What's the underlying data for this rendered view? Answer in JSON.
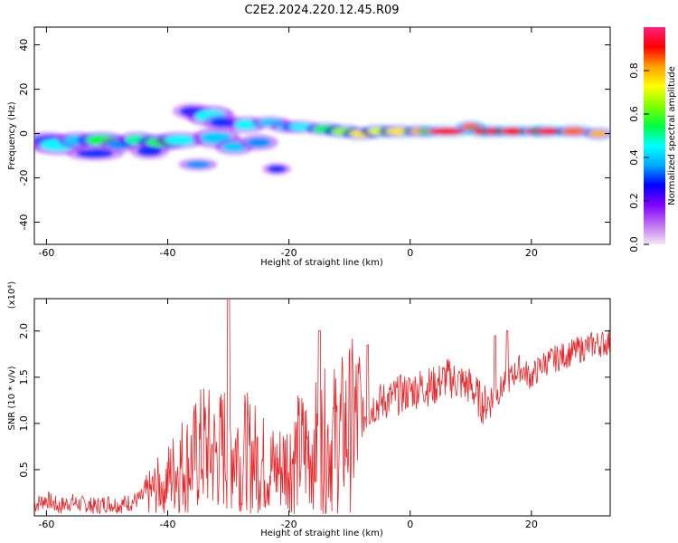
{
  "title": "C2E2.2024.220.12.45.R09",
  "chart_data": [
    {
      "type": "heatmap",
      "title": "C2E2.2024.220.12.45.R09",
      "xlabel": "Height of straight line (km)",
      "ylabel": "Frequency (Hz)",
      "xlim": [
        -62,
        33
      ],
      "ylim": [
        -50,
        48
      ],
      "xticks": [
        -60,
        -40,
        -20,
        0,
        20
      ],
      "yticks": [
        -40,
        -20,
        0,
        20,
        40
      ],
      "colorbar": {
        "label": "Normalized spectral amplitude",
        "range": [
          0,
          1
        ],
        "ticks": [
          0.0,
          0.2,
          0.4,
          0.6,
          0.8
        ],
        "colormap": [
          "#f5e6f7",
          "#c070f0",
          "#8000ff",
          "#0000ff",
          "#00aaff",
          "#00ffff",
          "#00ff40",
          "#80ff00",
          "#ffff00",
          "#ffa000",
          "#ff0000",
          "#ff2080"
        ]
      },
      "blobs": [
        {
          "x": -60,
          "y": -3,
          "w": 2.5,
          "h": 2,
          "v": 0.35
        },
        {
          "x": -58,
          "y": -5,
          "w": 3,
          "h": 2.5,
          "v": 0.45
        },
        {
          "x": -55,
          "y": -3,
          "w": 2,
          "h": 2,
          "v": 0.4
        },
        {
          "x": -52,
          "y": -9,
          "w": 3,
          "h": 1.8,
          "v": 0.3
        },
        {
          "x": -51,
          "y": -3,
          "w": 2.5,
          "h": 2,
          "v": 0.55
        },
        {
          "x": -48,
          "y": -5,
          "w": 2,
          "h": 2,
          "v": 0.35
        },
        {
          "x": -45,
          "y": -3,
          "w": 2,
          "h": 2,
          "v": 0.5
        },
        {
          "x": -43,
          "y": -8,
          "w": 2,
          "h": 2,
          "v": 0.3
        },
        {
          "x": -41,
          "y": -4,
          "w": 2.5,
          "h": 2,
          "v": 0.55
        },
        {
          "x": -38,
          "y": -3,
          "w": 2.5,
          "h": 2,
          "v": 0.45
        },
        {
          "x": -36,
          "y": 10,
          "w": 2,
          "h": 2,
          "v": 0.3
        },
        {
          "x": -35,
          "y": -14,
          "w": 2,
          "h": 1.5,
          "v": 0.35
        },
        {
          "x": -33,
          "y": 8,
          "w": 2.5,
          "h": 2.5,
          "v": 0.45
        },
        {
          "x": -32,
          "y": -2,
          "w": 2.5,
          "h": 2.5,
          "v": 0.4
        },
        {
          "x": -31,
          "y": 5,
          "w": 2,
          "h": 2,
          "v": 0.3
        },
        {
          "x": -29,
          "y": -6,
          "w": 2,
          "h": 2,
          "v": 0.4
        },
        {
          "x": -27,
          "y": 4,
          "w": 2,
          "h": 2,
          "v": 0.45
        },
        {
          "x": -25,
          "y": -4,
          "w": 2,
          "h": 2,
          "v": 0.35
        },
        {
          "x": -23,
          "y": 5,
          "w": 2,
          "h": 1.5,
          "v": 0.4
        },
        {
          "x": -22,
          "y": -16,
          "w": 1.5,
          "h": 1.5,
          "v": 0.3
        },
        {
          "x": -20,
          "y": 3,
          "w": 2,
          "h": 1.5,
          "v": 0.4
        },
        {
          "x": -18,
          "y": 3,
          "w": 2,
          "h": 1.5,
          "v": 0.45
        },
        {
          "x": -14,
          "y": 2,
          "w": 2,
          "h": 1.5,
          "v": 0.55
        },
        {
          "x": -11,
          "y": 1,
          "w": 2,
          "h": 1.5,
          "v": 0.65
        },
        {
          "x": -8,
          "y": 0,
          "w": 2,
          "h": 1.5,
          "v": 0.75
        },
        {
          "x": -5,
          "y": 1,
          "w": 2,
          "h": 1.5,
          "v": 0.7
        },
        {
          "x": -2,
          "y": 1,
          "w": 2,
          "h": 1.5,
          "v": 0.75
        },
        {
          "x": 2,
          "y": 1,
          "w": 2,
          "h": 1.5,
          "v": 0.8
        },
        {
          "x": 6,
          "y": 1,
          "w": 3,
          "h": 1.5,
          "v": 0.95
        },
        {
          "x": 10,
          "y": 3,
          "w": 1.5,
          "h": 1.5,
          "v": 0.85
        },
        {
          "x": 12,
          "y": 1,
          "w": 1.5,
          "h": 1.5,
          "v": 0.9
        },
        {
          "x": 14,
          "y": 1,
          "w": 1.5,
          "h": 1.5,
          "v": 0.9
        },
        {
          "x": 17,
          "y": 1,
          "w": 2,
          "h": 1.5,
          "v": 0.9
        },
        {
          "x": 21,
          "y": 1,
          "w": 2,
          "h": 1.5,
          "v": 0.9
        },
        {
          "x": 23,
          "y": 1,
          "w": 2,
          "h": 1.5,
          "v": 0.95
        },
        {
          "x": 27,
          "y": 1,
          "w": 2,
          "h": 1.5,
          "v": 0.85
        },
        {
          "x": 31,
          "y": 0,
          "w": 1.5,
          "h": 1.5,
          "v": 0.8
        }
      ]
    },
    {
      "type": "line",
      "xlabel": "Height of straight line (km)",
      "ylabel": "SNR (10 * v/v)",
      "y_multiplier_label": "(x10⁴)",
      "xlim": [
        -62,
        33
      ],
      "ylim": [
        0,
        2.35
      ],
      "xticks": [
        -60,
        -40,
        -20,
        0,
        20
      ],
      "yticks": [
        0.5,
        1.0,
        1.5,
        2.0
      ],
      "ytick_labels": [
        "0.5",
        "1.0",
        "1.5",
        "2.0"
      ],
      "series": [
        {
          "color": "#e8262a",
          "x": [
            -62,
            -60,
            -58,
            -56,
            -54,
            -52,
            -50,
            -48,
            -46,
            -44,
            -42,
            -40,
            -38,
            -36,
            -34,
            -32,
            -30,
            -28,
            -26,
            -24,
            -22,
            -20,
            -18,
            -16,
            -14,
            -12,
            -10,
            -8,
            -6,
            -4,
            -2,
            0,
            2,
            4,
            6,
            8,
            10,
            12,
            14,
            16,
            18,
            20,
            22,
            24,
            26,
            28,
            30,
            33
          ],
          "y": [
            0.12,
            0.18,
            0.1,
            0.15,
            0.12,
            0.1,
            0.14,
            0.12,
            0.15,
            0.2,
            0.3,
            0.4,
            0.55,
            0.6,
            0.75,
            0.65,
            0.8,
            0.7,
            0.65,
            0.55,
            0.5,
            0.6,
            0.7,
            0.75,
            0.8,
            0.85,
            0.95,
            1.05,
            1.2,
            1.25,
            1.3,
            1.35,
            1.4,
            1.4,
            1.5,
            1.45,
            1.4,
            1.2,
            1.3,
            1.45,
            1.6,
            1.5,
            1.65,
            1.7,
            1.75,
            1.8,
            1.85,
            1.88
          ]
        }
      ],
      "peaks": [
        {
          "x": -30,
          "y": 2.35
        },
        {
          "x": -15,
          "y": 2.0
        },
        {
          "x": -7,
          "y": 1.85
        },
        {
          "x": 14,
          "y": 1.95
        },
        {
          "x": 16,
          "y": 2.0
        }
      ]
    }
  ]
}
